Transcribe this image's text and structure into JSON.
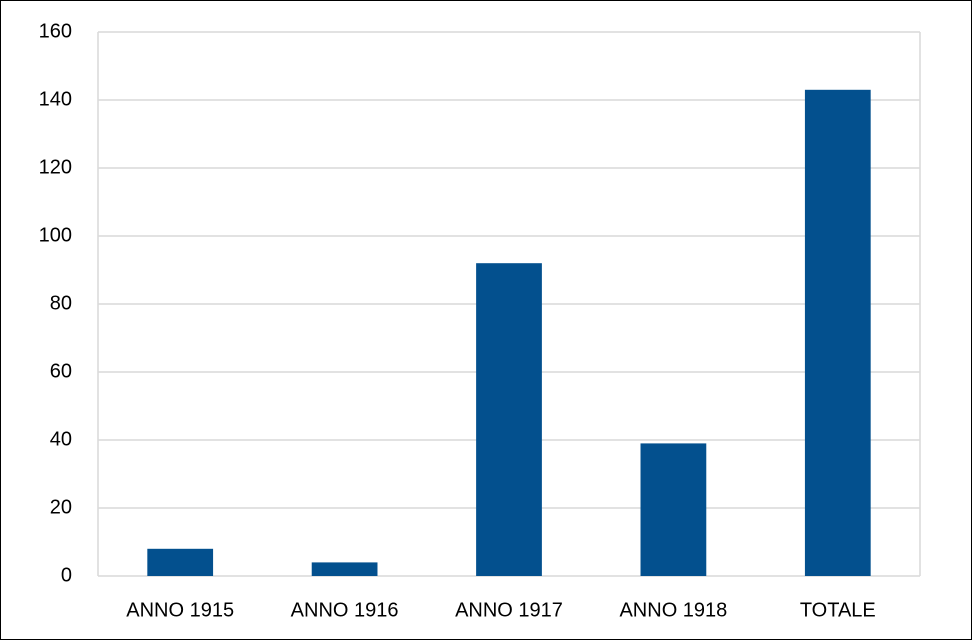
{
  "chart_data": {
    "type": "bar",
    "categories": [
      "ANNO 1915",
      "ANNO 1916",
      "ANNO 1917",
      "ANNO 1918",
      "TOTALE"
    ],
    "values": [
      8,
      4,
      92,
      39,
      143
    ],
    "color": "#03508e",
    "ylim": [
      0,
      160
    ],
    "yticks": [
      0,
      20,
      40,
      60,
      80,
      100,
      120,
      140,
      160
    ],
    "grid": true
  }
}
